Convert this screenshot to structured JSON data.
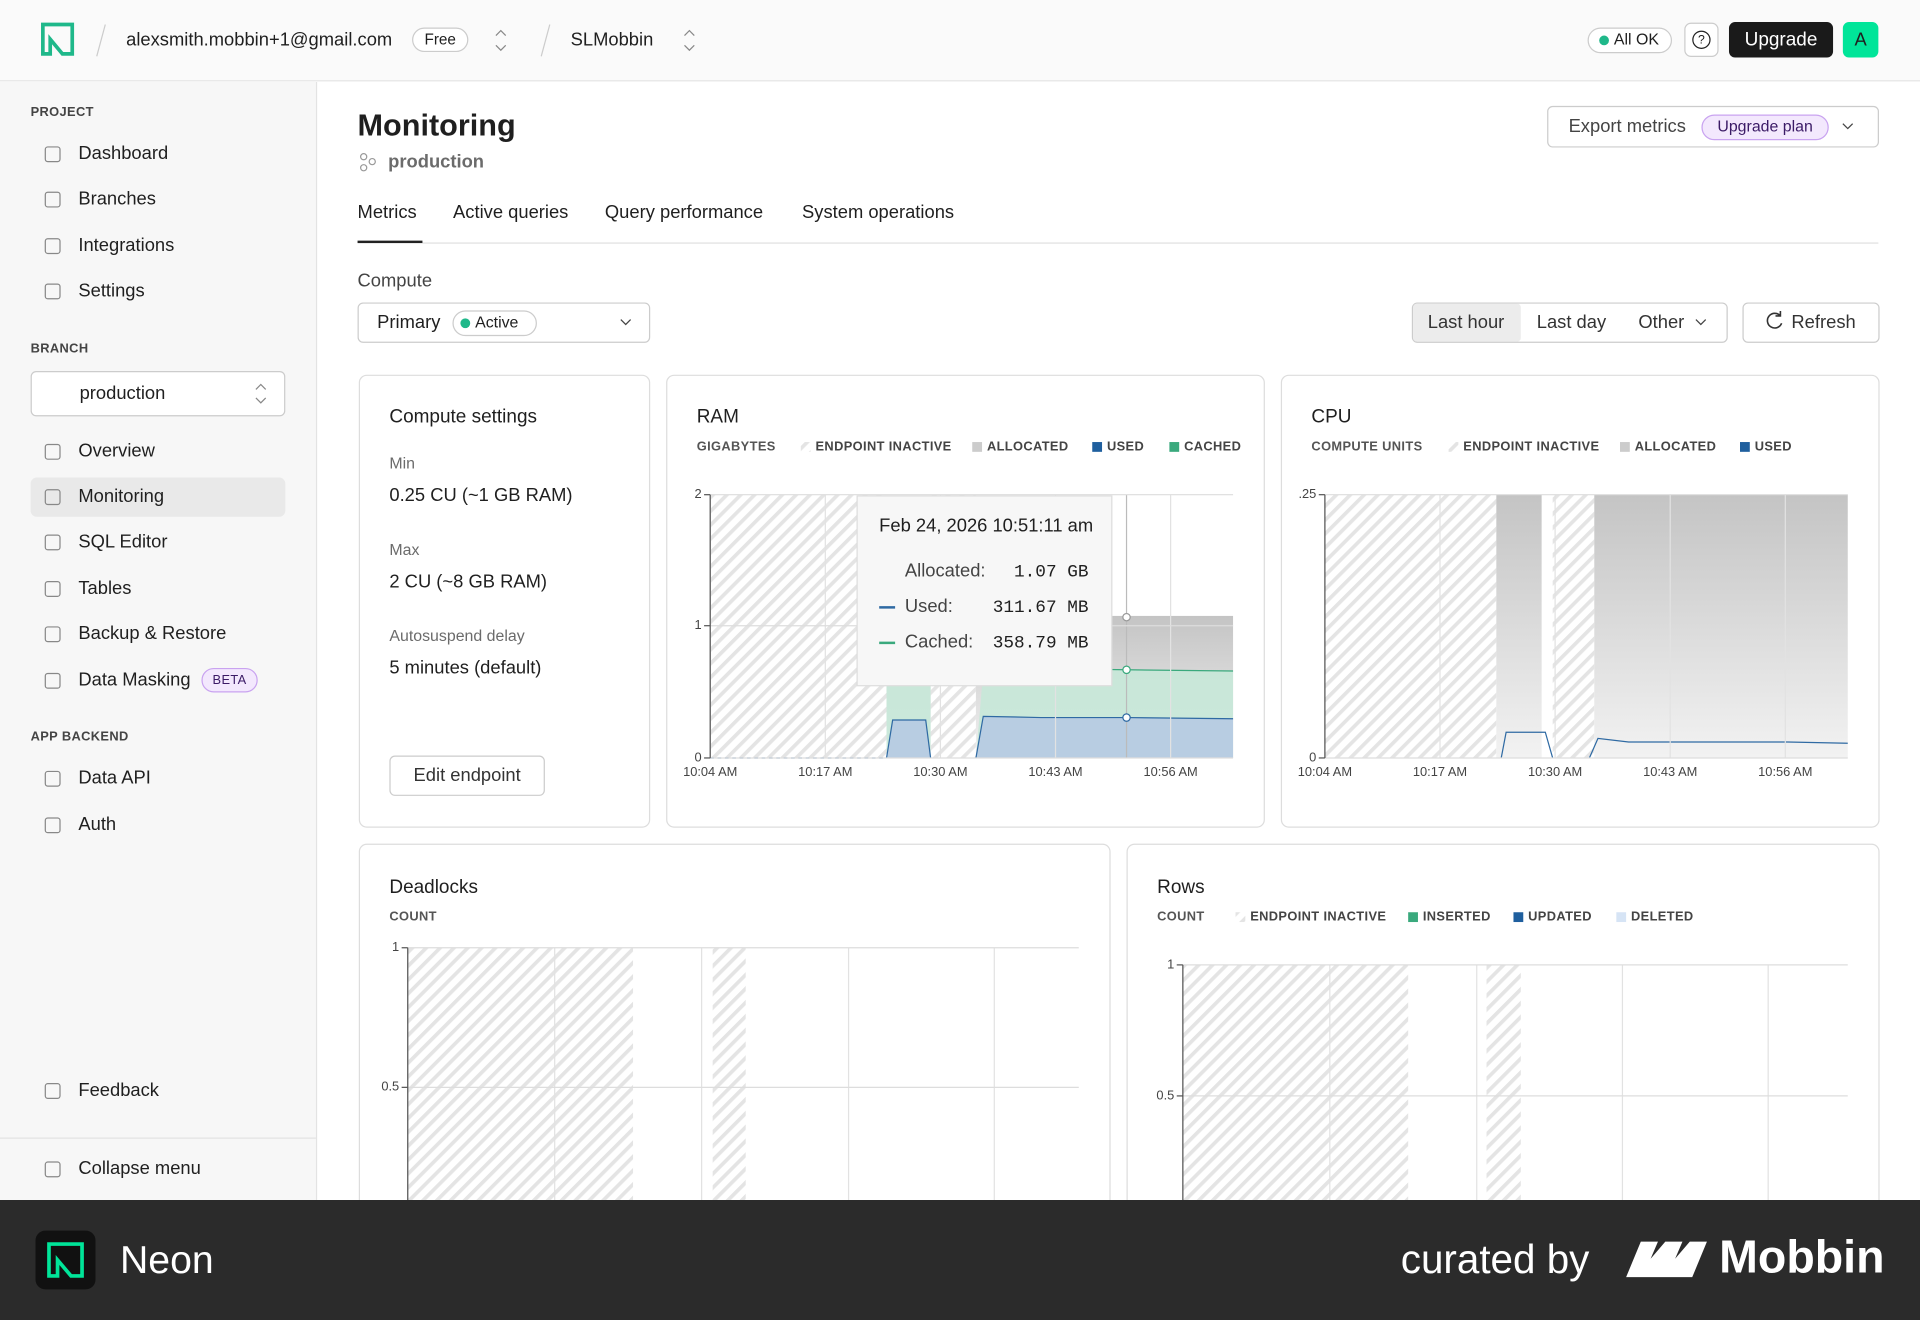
{
  "topbar": {
    "account": "alexsmith.mobbin+1@gmail.com",
    "plan": "Free",
    "project": "SLMobbin",
    "status": "All OK",
    "help": "?",
    "upgrade": "Upgrade",
    "avatar": "A"
  },
  "sidebar": {
    "project_heading": "PROJECT",
    "project_items": [
      "Dashboard",
      "Branches",
      "Integrations",
      "Settings"
    ],
    "branch_heading": "BRANCH",
    "branch": "production",
    "branch_items": [
      "Overview",
      "Monitoring",
      "SQL Editor",
      "Tables",
      "Backup & Restore",
      "Data Masking"
    ],
    "beta": "BETA",
    "backend_heading": "APP BACKEND",
    "backend_items": [
      "Data API",
      "Auth"
    ],
    "feedback": "Feedback",
    "collapse": "Collapse menu"
  },
  "header": {
    "title": "Monitoring",
    "branch": "production",
    "export": "Export metrics",
    "upgrade_plan": "Upgrade plan"
  },
  "tabs": [
    "Metrics",
    "Active queries",
    "Query performance",
    "System operations"
  ],
  "compute": {
    "label": "Compute",
    "selected": "Primary",
    "status": "Active"
  },
  "range": {
    "options": [
      "Last hour",
      "Last day",
      "Other"
    ],
    "refresh": "Refresh"
  },
  "compute_settings": {
    "title": "Compute settings",
    "fields": [
      {
        "label": "Min",
        "value": "0.25 CU (~1 GB RAM)"
      },
      {
        "label": "Max",
        "value": "2 CU (~8 GB RAM)"
      },
      {
        "label": "Autosuspend delay",
        "value": "5 minutes (default)"
      }
    ],
    "edit": "Edit endpoint"
  },
  "ram": {
    "title": "RAM",
    "unit": "GIGABYTES",
    "legend": [
      "ENDPOINT INACTIVE",
      "ALLOCATED",
      "USED",
      "CACHED"
    ],
    "yticks": [
      "2",
      "1",
      "0"
    ],
    "xticks": [
      "10:04 AM",
      "10:17 AM",
      "10:30 AM",
      "10:43 AM",
      "10:56 AM"
    ],
    "tooltip": {
      "time": "Feb 24, 2026 10:51:11 am",
      "rows": [
        {
          "label": "Allocated:",
          "value": "1.07 GB"
        },
        {
          "label": "Used:",
          "value": "311.67 MB"
        },
        {
          "label": "Cached:",
          "value": "358.79 MB"
        }
      ]
    }
  },
  "cpu": {
    "title": "CPU",
    "unit": "COMPUTE UNITS",
    "legend": [
      "ENDPOINT INACTIVE",
      "ALLOCATED",
      "USED"
    ],
    "yticks": [
      ".25",
      "0"
    ],
    "xticks": [
      "10:04 AM",
      "10:17 AM",
      "10:30 AM",
      "10:43 AM",
      "10:56 AM"
    ]
  },
  "deadlocks": {
    "title": "Deadlocks",
    "unit": "COUNT",
    "yticks": [
      "1",
      "0.5"
    ]
  },
  "rows": {
    "title": "Rows",
    "unit": "COUNT",
    "legend": [
      "ENDPOINT INACTIVE",
      "INSERTED",
      "UPDATED",
      "DELETED"
    ],
    "yticks": [
      "1",
      "0.5"
    ]
  },
  "footer": {
    "app": "Neon",
    "curated": "curated by",
    "brand": "Mobbin"
  }
}
